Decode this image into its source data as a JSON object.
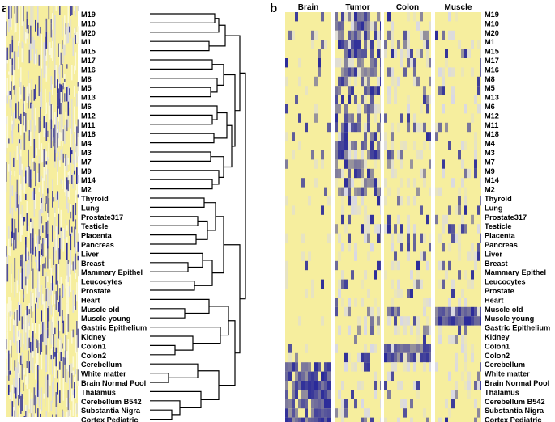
{
  "panel_a": {
    "label": "a",
    "rows": [
      "M19",
      "M10",
      "M20",
      "M1",
      "M15",
      "M17",
      "M16",
      "M8",
      "M5",
      "M13",
      "M6",
      "M12",
      "M11",
      "M18",
      "M4",
      "M3",
      "M7",
      "M9",
      "M14",
      "M2",
      "Thyroid",
      "Lung",
      "Prostate317",
      "Testicle",
      "Placenta",
      "Pancreas",
      "Liver",
      "Breast",
      "Mammary Epithel",
      "Leucocytes",
      "Prostate",
      "Heart",
      "Muscle old",
      "Muscle young",
      "Gastric Epithelium",
      "Kidney",
      "Colon1",
      "Colon2",
      "Cerebellum",
      "White matter",
      "Brain Normal Pool",
      "Thalamus",
      "Cerebellum B542",
      "Substantia Nigra",
      "Cortex Pediatric"
    ]
  },
  "panel_b": {
    "label": "b",
    "columns": [
      "Brain",
      "Tumor",
      "Colon",
      "Muscle"
    ],
    "rows": [
      "M19",
      "M10",
      "M20",
      "M1",
      "M15",
      "M17",
      "M16",
      "M8",
      "M5",
      "M13",
      "M6",
      "M12",
      "M11",
      "M18",
      "M4",
      "M3",
      "M7",
      "M9",
      "M14",
      "M2",
      "Thyroid",
      "Lung",
      "Prostate317",
      "Testicle",
      "Placenta",
      "Pancreas",
      "Liver",
      "Breast",
      "Mammary Epithel",
      "Leucocytes",
      "Prostate",
      "Heart",
      "Muscle old",
      "Muscle young",
      "Gastric Epithelium",
      "Kidney",
      "Colon1",
      "Colon2",
      "Cerebellum",
      "White matter",
      "Brain Normal Pool",
      "Thalamus",
      "Cerebellum B542",
      "Substantia Nigra",
      "Cortex Pediatric"
    ]
  },
  "colors": {
    "low": "#f6ee9e",
    "high": "#2a2a9a",
    "mid": "#d8d8e6",
    "pale": "#fbf8d6"
  }
}
